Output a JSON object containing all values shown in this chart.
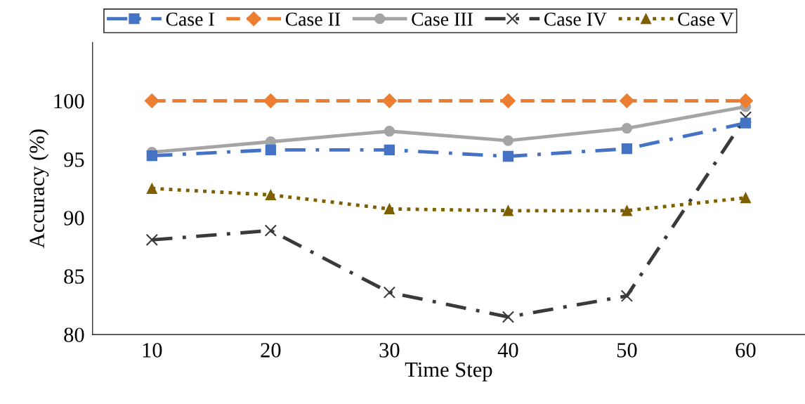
{
  "chart_data": {
    "type": "line",
    "xlabel": "Time Step",
    "ylabel": "Accuracy (%)",
    "categories": [
      "10",
      "20",
      "30",
      "40",
      "50",
      "60"
    ],
    "series": [
      {
        "name": "Case I",
        "color": "#4472c4",
        "marker": "square",
        "line_style": "dashdot",
        "values": [
          95.3,
          95.8,
          95.8,
          95.25,
          95.9,
          98.1
        ]
      },
      {
        "name": "Case II",
        "color": "#ed7d31",
        "marker": "diamond",
        "line_style": "dashed",
        "values": [
          100,
          100,
          100,
          100,
          100,
          100
        ]
      },
      {
        "name": "Case III",
        "color": "#a5a5a5",
        "marker": "circle",
        "line_style": "solid",
        "values": [
          95.6,
          96.5,
          97.4,
          96.6,
          97.65,
          99.5
        ]
      },
      {
        "name": "Case IV",
        "color": "#3a3a3a",
        "marker": "cross",
        "line_style": "dashdot",
        "values": [
          88.1,
          88.9,
          83.6,
          81.5,
          83.3,
          98.6
        ]
      },
      {
        "name": "Case V",
        "color": "#7f6000",
        "marker": "triangle",
        "line_style": "dotted",
        "values": [
          92.5,
          91.95,
          90.75,
          90.6,
          90.6,
          91.7
        ]
      }
    ],
    "ylim": [
      80,
      105
    ],
    "yticks": [
      80,
      85,
      90,
      95,
      100
    ],
    "grid": false,
    "legend": "top"
  }
}
